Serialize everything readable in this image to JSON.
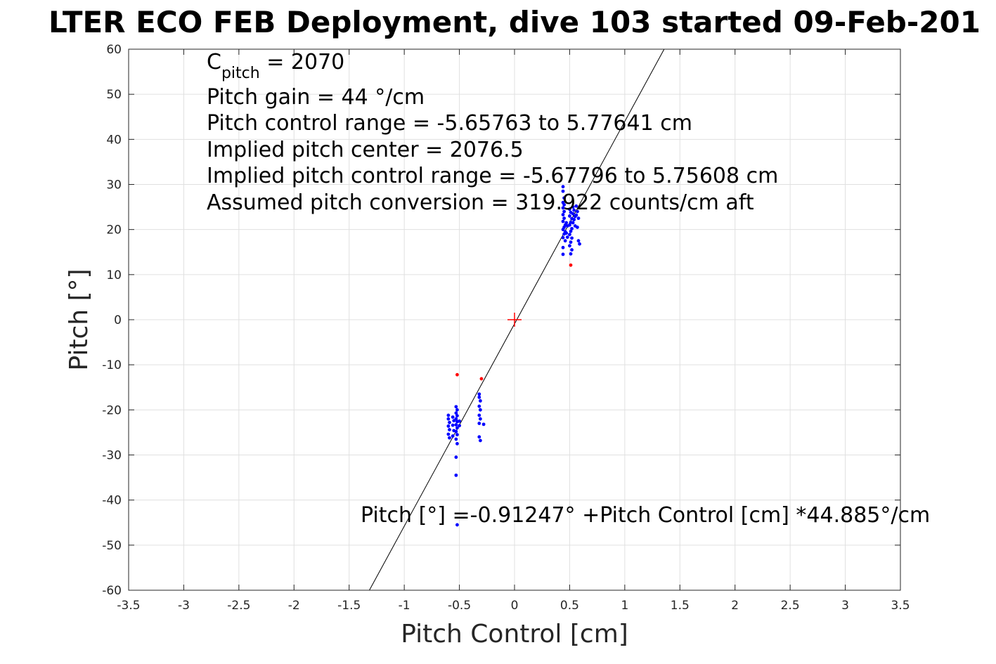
{
  "chart_data": {
    "type": "scatter",
    "title": "LTER ECO FEB Deployment, dive 103 started 09-Feb-201",
    "xlabel": "Pitch Control [cm]",
    "ylabel": "Pitch [°]",
    "xlim": [
      -3.5,
      3.5
    ],
    "ylim": [
      -60,
      60
    ],
    "grid": true,
    "x_ticks": [
      "-3.5",
      "-3",
      "-2.5",
      "-2",
      "-1.5",
      "-1",
      "-0.5",
      "0",
      "0.5",
      "1",
      "1.5",
      "2",
      "2.5",
      "3",
      "3.5"
    ],
    "y_ticks": [
      "60",
      "50",
      "40",
      "30",
      "20",
      "10",
      "0",
      "-10",
      "-20",
      "-30",
      "-40",
      "-50",
      "-60"
    ],
    "annotations": {
      "c_pitch_main": "C",
      "c_pitch_sub": "pitch",
      "c_pitch_value": " = 2070",
      "pitch_gain": "Pitch gain = 44 °/cm",
      "pitch_control_range": "Pitch control range = -5.65763 to 5.77641 cm",
      "implied_pitch_center": "Implied pitch center = 2076.5",
      "implied_pitch_control_range": "Implied pitch control range = -5.67796 to 5.75608 cm",
      "assumed_pitch_conversion": "Assumed pitch conversion = 319.922 counts/cm aft",
      "fit_equation": "Pitch [°] =-0.91247° +Pitch Control [cm] *44.885°/cm"
    },
    "fit_line": {
      "intercept": -0.91247,
      "slope": 44.885,
      "color": "#000000"
    },
    "center_marker": {
      "x": 0,
      "y": 0,
      "color": "#ff0000"
    },
    "series": [
      {
        "color": "#0000ff",
        "points": [
          [
            0.44,
            29.5
          ],
          [
            0.44,
            28.5
          ],
          [
            0.45,
            27
          ],
          [
            0.44,
            26
          ],
          [
            0.45,
            25.5
          ],
          [
            0.44,
            24.8
          ],
          [
            0.45,
            24
          ],
          [
            0.44,
            23.3
          ],
          [
            0.45,
            22.5
          ],
          [
            0.44,
            21.8
          ],
          [
            0.46,
            21
          ],
          [
            0.45,
            20.5
          ],
          [
            0.44,
            20
          ],
          [
            0.46,
            19.5
          ],
          [
            0.45,
            19
          ],
          [
            0.44,
            18.2
          ],
          [
            0.46,
            17.5
          ],
          [
            0.44,
            16
          ],
          [
            0.44,
            14.5
          ],
          [
            0.47,
            21.5
          ],
          [
            0.48,
            20.8
          ],
          [
            0.47,
            19.2
          ],
          [
            0.48,
            18.3
          ],
          [
            0.5,
            24.5
          ],
          [
            0.51,
            23.8
          ],
          [
            0.5,
            23
          ],
          [
            0.52,
            22.4
          ],
          [
            0.51,
            21.6
          ],
          [
            0.5,
            21
          ],
          [
            0.52,
            20.2
          ],
          [
            0.51,
            19.6
          ],
          [
            0.5,
            18.9
          ],
          [
            0.52,
            18.1
          ],
          [
            0.51,
            17.2
          ],
          [
            0.5,
            16.4
          ],
          [
            0.52,
            15.5
          ],
          [
            0.51,
            14.6
          ],
          [
            0.53,
            25
          ],
          [
            0.54,
            24.3
          ],
          [
            0.53,
            23.5
          ],
          [
            0.55,
            22.9
          ],
          [
            0.54,
            22.2
          ],
          [
            0.53,
            21.5
          ],
          [
            0.55,
            20.8
          ],
          [
            0.56,
            25.2
          ],
          [
            0.57,
            24
          ],
          [
            0.56,
            23.2
          ],
          [
            0.58,
            22.5
          ],
          [
            0.57,
            20.5
          ],
          [
            0.58,
            17.5
          ],
          [
            0.59,
            16.8
          ],
          [
            -0.6,
            -21.2
          ],
          [
            -0.6,
            -22
          ],
          [
            -0.59,
            -22.8
          ],
          [
            -0.6,
            -23.6
          ],
          [
            -0.59,
            -24.4
          ],
          [
            -0.6,
            -25.4
          ],
          [
            -0.59,
            -26.2
          ],
          [
            -0.56,
            -21.6
          ],
          [
            -0.55,
            -22.4
          ],
          [
            -0.56,
            -23.4
          ],
          [
            -0.55,
            -24.6
          ],
          [
            -0.56,
            -25.8
          ],
          [
            -0.53,
            -19.3
          ],
          [
            -0.52,
            -20
          ],
          [
            -0.53,
            -20.7
          ],
          [
            -0.52,
            -21.3
          ],
          [
            -0.53,
            -22
          ],
          [
            -0.52,
            -22.6
          ],
          [
            -0.53,
            -23.3
          ],
          [
            -0.52,
            -24
          ],
          [
            -0.53,
            -24.8
          ],
          [
            -0.52,
            -25.5
          ],
          [
            -0.53,
            -26.5
          ],
          [
            -0.52,
            -27.5
          ],
          [
            -0.53,
            -30.5
          ],
          [
            -0.53,
            -34.5
          ],
          [
            -0.52,
            -45.5
          ],
          [
            -0.5,
            -22.5
          ],
          [
            -0.5,
            -23.5
          ],
          [
            -0.32,
            -16.5
          ],
          [
            -0.32,
            -17.2
          ],
          [
            -0.31,
            -18
          ],
          [
            -0.32,
            -19.2
          ],
          [
            -0.31,
            -20
          ],
          [
            -0.32,
            -21.2
          ],
          [
            -0.31,
            -22
          ],
          [
            -0.32,
            -23
          ],
          [
            -0.32,
            -26
          ],
          [
            -0.31,
            -26.8
          ],
          [
            -0.28,
            -23.2
          ]
        ]
      },
      {
        "color": "#ff0000",
        "points": [
          [
            -0.52,
            -12.2
          ],
          [
            -0.3,
            -13.1
          ],
          [
            0.51,
            12.1
          ]
        ]
      }
    ]
  }
}
